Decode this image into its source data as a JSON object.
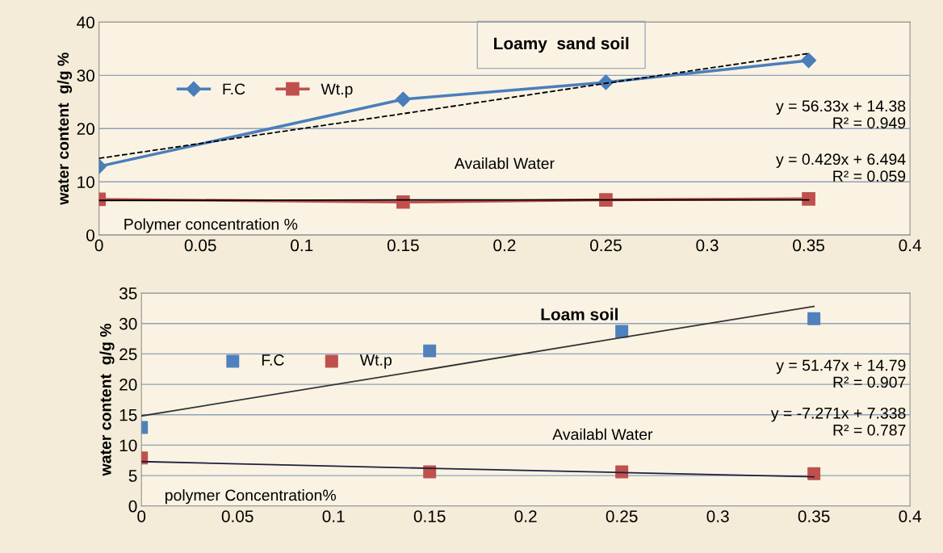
{
  "chart_data": [
    {
      "type": "line",
      "title": "Loamy  sand soil",
      "xlabel": "Polymer concentration %",
      "ylabel": "water content  g/g %",
      "x": [
        0,
        0.15,
        0.25,
        0.35
      ],
      "series": [
        {
          "name": "F.C",
          "color": "#4a7ebb",
          "marker": "diamond",
          "values": [
            12.9,
            25.5,
            28.7,
            32.8
          ]
        },
        {
          "name": "Wt.p",
          "color": "#c0504d",
          "marker": "square",
          "values": [
            6.7,
            6.2,
            6.6,
            6.8
          ]
        },
        {
          "type": "line",
          "color": "#000000",
          "line_style": "dashed",
          "marker": "none",
          "values": [
            14.4,
            22.8,
            28.5,
            34.1
          ]
        },
        {
          "type": "line",
          "color": "#000000",
          "line_style": "solid",
          "marker": "none",
          "values": [
            6.5,
            6.6,
            6.6,
            6.6
          ]
        }
      ],
      "annotations": [
        "y = 56.33x + 14.38\nR² = 0.949",
        "Availabl Water",
        "y = 0.429x + 6.494\nR² = 0.059"
      ],
      "xlim": [
        0,
        0.4
      ],
      "xticks": [
        0,
        0.05,
        0.1,
        0.15,
        0.2,
        0.25,
        0.3,
        0.35,
        0.4
      ],
      "ylim": [
        0,
        40
      ],
      "yticks": [
        0,
        10,
        20,
        30,
        40
      ],
      "grid": "y",
      "legend": "top left"
    },
    {
      "type": "scatter",
      "title": "Loam soil",
      "xlabel": "polymer Concentration%",
      "ylabel": "water content  g/g %",
      "x": [
        0,
        0.15,
        0.25,
        0.35
      ],
      "series": [
        {
          "name": "F.C",
          "color": "#4f81bd",
          "marker": "square",
          "values": [
            12.9,
            25.5,
            28.7,
            30.8
          ]
        },
        {
          "name": "Wt.p",
          "color": "#c0504d",
          "marker": "square",
          "values": [
            7.9,
            5.6,
            5.6,
            5.3
          ]
        },
        {
          "type": "line",
          "color": "#333333",
          "line_style": "solid",
          "marker": "none",
          "values": [
            14.8,
            22.5,
            27.7,
            32.8
          ]
        },
        {
          "type": "line",
          "color": "#1f1f3f",
          "line_style": "solid",
          "marker": "none",
          "values": [
            7.3,
            6.2,
            5.5,
            4.8
          ]
        }
      ],
      "annotations": [
        "y = 51.47x + 14.79\nR² = 0.907",
        "Availabl Water",
        "y = -7.271x + 7.338\nR² = 0.787"
      ],
      "xlim": [
        0,
        0.4
      ],
      "xticks": [
        0,
        0.05,
        0.1,
        0.15,
        0.2,
        0.25,
        0.3,
        0.35,
        0.4
      ],
      "ylim": [
        0,
        35
      ],
      "yticks": [
        0,
        5,
        10,
        15,
        20,
        25,
        30,
        35
      ],
      "grid": "y",
      "legend": "top left"
    }
  ]
}
